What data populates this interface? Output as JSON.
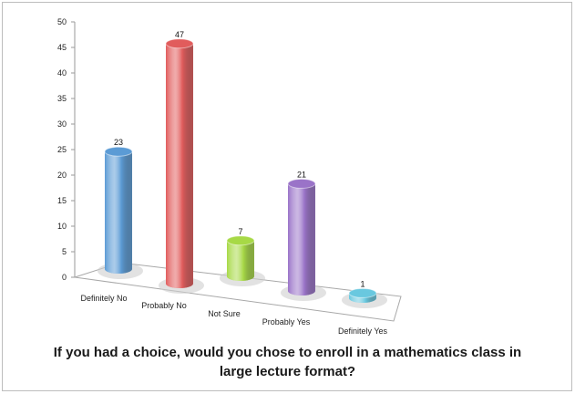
{
  "chart_data": {
    "type": "bar",
    "title": "If you had a choice, would you chose to enroll in a mathematics class in large lecture format?",
    "categories": [
      "Definitely No",
      "Probably No",
      "Not Sure",
      "Probably Yes",
      "Definitely Yes"
    ],
    "values": [
      23,
      47,
      7,
      21,
      1
    ],
    "data_labels": [
      "23",
      "47",
      "7",
      "21",
      "1"
    ],
    "colors": [
      "#5b9bd5",
      "#e15c5c",
      "#a7d946",
      "#9a73c8",
      "#69c8df"
    ],
    "ylim": [
      0,
      50
    ],
    "yticks": [
      0,
      5,
      10,
      15,
      20,
      25,
      30,
      35,
      40,
      45,
      50
    ],
    "xlabel": "",
    "ylabel": "",
    "grid": false,
    "legend": "none"
  }
}
